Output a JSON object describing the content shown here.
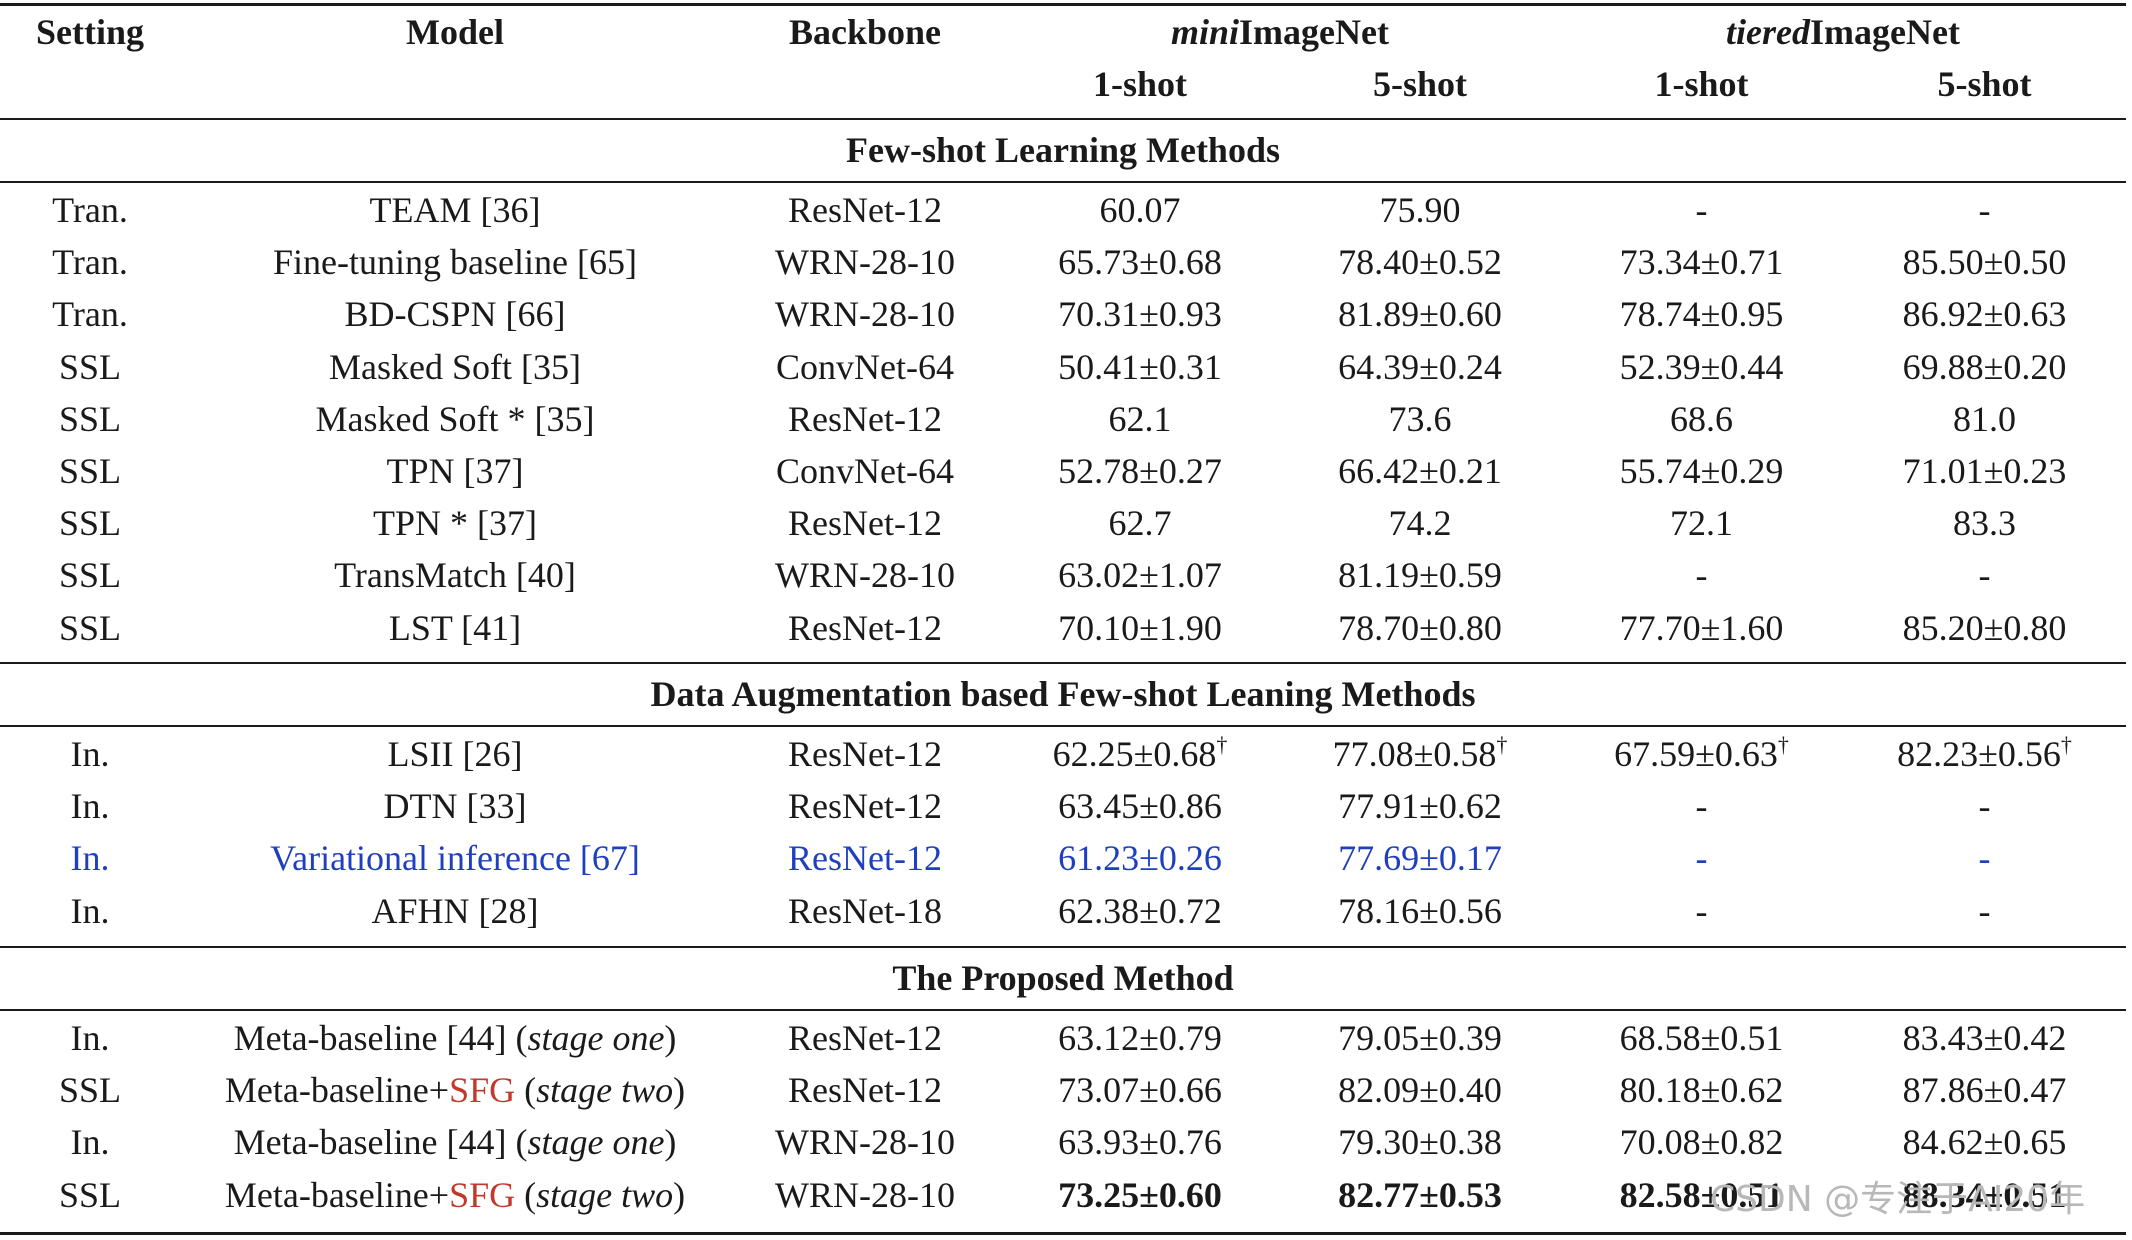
{
  "header": {
    "setting": "Setting",
    "model": "Model",
    "backbone": "Backbone",
    "mini": {
      "italic": "mini",
      "rest": "ImageNet"
    },
    "tiered": {
      "italic": "tiered",
      "rest": "ImageNet"
    },
    "shots": [
      "1-shot",
      "5-shot",
      "1-shot",
      "5-shot"
    ]
  },
  "sections": [
    {
      "title": "Few-shot Learning Methods",
      "rows": [
        {
          "setting": "Tran.",
          "model": [
            {
              "t": "TEAM [36]"
            }
          ],
          "backbone": "ResNet-12",
          "vals": [
            "60.07",
            "75.90",
            "-",
            "-"
          ]
        },
        {
          "setting": "Tran.",
          "model": [
            {
              "t": "Fine-tuning baseline [65]"
            }
          ],
          "backbone": "WRN-28-10",
          "vals": [
            "65.73±0.68",
            "78.40±0.52",
            "73.34±0.71",
            "85.50±0.50"
          ]
        },
        {
          "setting": "Tran.",
          "model": [
            {
              "t": "BD-CSPN [66]"
            }
          ],
          "backbone": "WRN-28-10",
          "vals": [
            "70.31±0.93",
            "81.89±0.60",
            "78.74±0.95",
            "86.92±0.63"
          ]
        },
        {
          "setting": "SSL",
          "model": [
            {
              "t": "Masked Soft [35]"
            }
          ],
          "backbone": "ConvNet-64",
          "vals": [
            "50.41±0.31",
            "64.39±0.24",
            "52.39±0.44",
            "69.88±0.20"
          ]
        },
        {
          "setting": "SSL",
          "model": [
            {
              "t": "Masked Soft * [35]"
            }
          ],
          "backbone": "ResNet-12",
          "vals": [
            "62.1",
            "73.6",
            "68.6",
            "81.0"
          ]
        },
        {
          "setting": "SSL",
          "model": [
            {
              "t": "TPN [37]"
            }
          ],
          "backbone": "ConvNet-64",
          "vals": [
            "52.78±0.27",
            "66.42±0.21",
            "55.74±0.29",
            "71.01±0.23"
          ]
        },
        {
          "setting": "SSL",
          "model": [
            {
              "t": "TPN * [37]"
            }
          ],
          "backbone": "ResNet-12",
          "vals": [
            "62.7",
            "74.2",
            "72.1",
            "83.3"
          ]
        },
        {
          "setting": "SSL",
          "model": [
            {
              "t": "TransMatch [40]"
            }
          ],
          "backbone": "WRN-28-10",
          "vals": [
            "63.02±1.07",
            "81.19±0.59",
            "-",
            "-"
          ]
        },
        {
          "setting": "SSL",
          "model": [
            {
              "t": "LST [41]"
            }
          ],
          "backbone": "ResNet-12",
          "vals": [
            "70.10±1.90",
            "78.70±0.80",
            "77.70±1.60",
            "85.20±0.80"
          ]
        }
      ]
    },
    {
      "title": "Data Augmentation based Few-shot Leaning Methods",
      "rows": [
        {
          "setting": "In.",
          "model": [
            {
              "t": "LSII [26]"
            }
          ],
          "backbone": "ResNet-12",
          "vals": [
            "62.25±0.68",
            "77.08±0.58",
            "67.59±0.63",
            "82.23±0.56"
          ],
          "dagger": "†"
        },
        {
          "setting": "In.",
          "model": [
            {
              "t": "DTN [33]"
            }
          ],
          "backbone": "ResNet-12",
          "vals": [
            "63.45±0.86",
            "77.91±0.62",
            "-",
            "-"
          ]
        },
        {
          "setting": "In.",
          "model": [
            {
              "t": "Variational inference [67]"
            }
          ],
          "backbone": "ResNet-12",
          "vals": [
            "61.23±0.26",
            "77.69±0.17",
            "-",
            "-"
          ],
          "color": "blue"
        },
        {
          "setting": "In.",
          "model": [
            {
              "t": "AFHN [28]"
            }
          ],
          "backbone": "ResNet-18",
          "vals": [
            "62.38±0.72",
            "78.16±0.56",
            "-",
            "-"
          ]
        }
      ]
    },
    {
      "title": "The Proposed Method",
      "rows": [
        {
          "setting": "In.",
          "model": [
            {
              "t": "Meta-baseline [44] ("
            },
            {
              "t": "stage one",
              "i": true
            },
            {
              "t": ")"
            }
          ],
          "backbone": "ResNet-12",
          "vals": [
            "63.12±0.79",
            "79.05±0.39",
            "68.58±0.51",
            "83.43±0.42"
          ]
        },
        {
          "setting": "SSL",
          "model": [
            {
              "t": "Meta-baseline+"
            },
            {
              "t": "SFG",
              "c": "red"
            },
            {
              "t": " ("
            },
            {
              "t": "stage two",
              "i": true
            },
            {
              "t": ")"
            }
          ],
          "backbone": "ResNet-12",
          "vals": [
            "73.07±0.66",
            "82.09±0.40",
            "80.18±0.62",
            "87.86±0.47"
          ]
        },
        {
          "setting": "In.",
          "model": [
            {
              "t": "Meta-baseline [44] ("
            },
            {
              "t": "stage one",
              "i": true
            },
            {
              "t": ")"
            }
          ],
          "backbone": "WRN-28-10",
          "vals": [
            "63.93±0.76",
            "79.30±0.38",
            "70.08±0.82",
            "84.62±0.65"
          ]
        },
        {
          "setting": "SSL",
          "model": [
            {
              "t": "Meta-baseline+"
            },
            {
              "t": "SFG",
              "c": "red"
            },
            {
              "t": " ("
            },
            {
              "t": "stage two",
              "i": true
            },
            {
              "t": ")"
            }
          ],
          "backbone": "WRN-28-10",
          "vals": [
            "73.25±0.60",
            "82.77±0.53",
            "82.58±0.51",
            "88.34±0.51"
          ],
          "bold": true
        }
      ]
    }
  ],
  "watermark": "CSDN @专注于AI20年",
  "colors": {
    "blue": "#1f3fbf",
    "red": "#c0392b",
    "text": "#1a1a1a"
  }
}
